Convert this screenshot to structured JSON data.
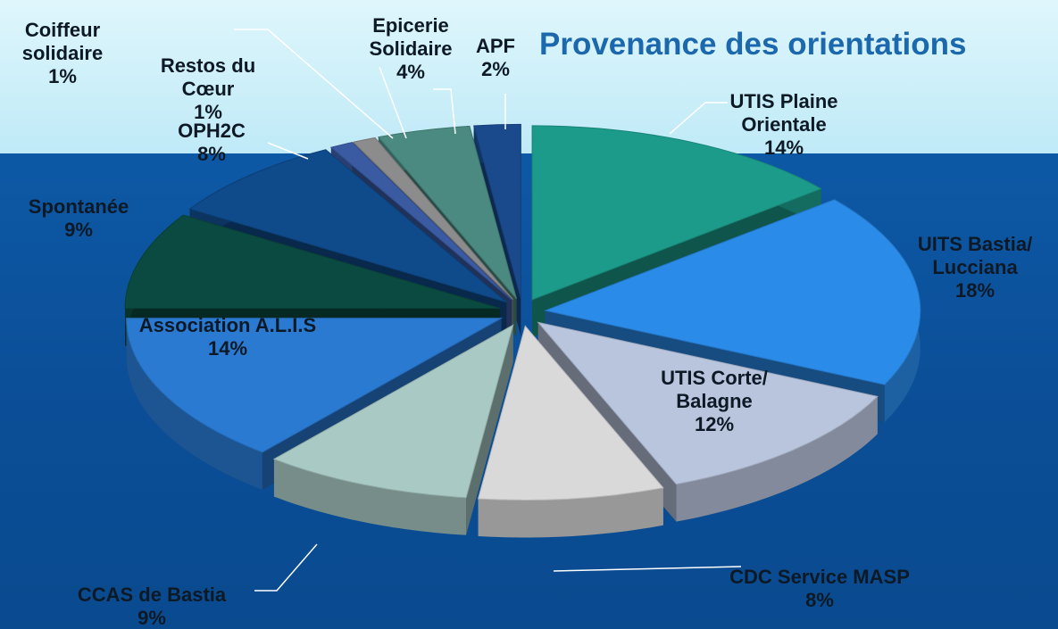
{
  "chart_data": {
    "type": "pie",
    "title": "Provenance des orientations",
    "categories": [
      "UTIS Plaine Orientale",
      "UITS Bastia/ Lucciana",
      "UTIS Corte/ Balagne",
      "CDC Service MASP",
      "CCAS de Bastia",
      "Association A.L.I.S",
      "Spontanée",
      "OPH2C",
      "Coiffeur solidaire",
      "Restos du Cœur",
      "Epicerie Solidaire",
      "APF"
    ],
    "values": [
      14,
      18,
      12,
      8,
      9,
      14,
      9,
      8,
      1,
      1,
      4,
      2
    ],
    "value_labels": [
      "14%",
      "18%",
      "12%",
      "8%",
      "9%",
      "14%",
      "9%",
      "8%",
      "1%",
      "1%",
      "4%",
      "2%"
    ],
    "colors": [
      "#1c9a8a",
      "#2a8be8",
      "#b9c5dd",
      "#d9d9d9",
      "#a9c9c5",
      "#2a7ad2",
      "#0b4a40",
      "#0f4a8a",
      "#3a5aa2",
      "#8c8c8c",
      "#4a8a80",
      "#1a4a8c"
    ]
  }
}
